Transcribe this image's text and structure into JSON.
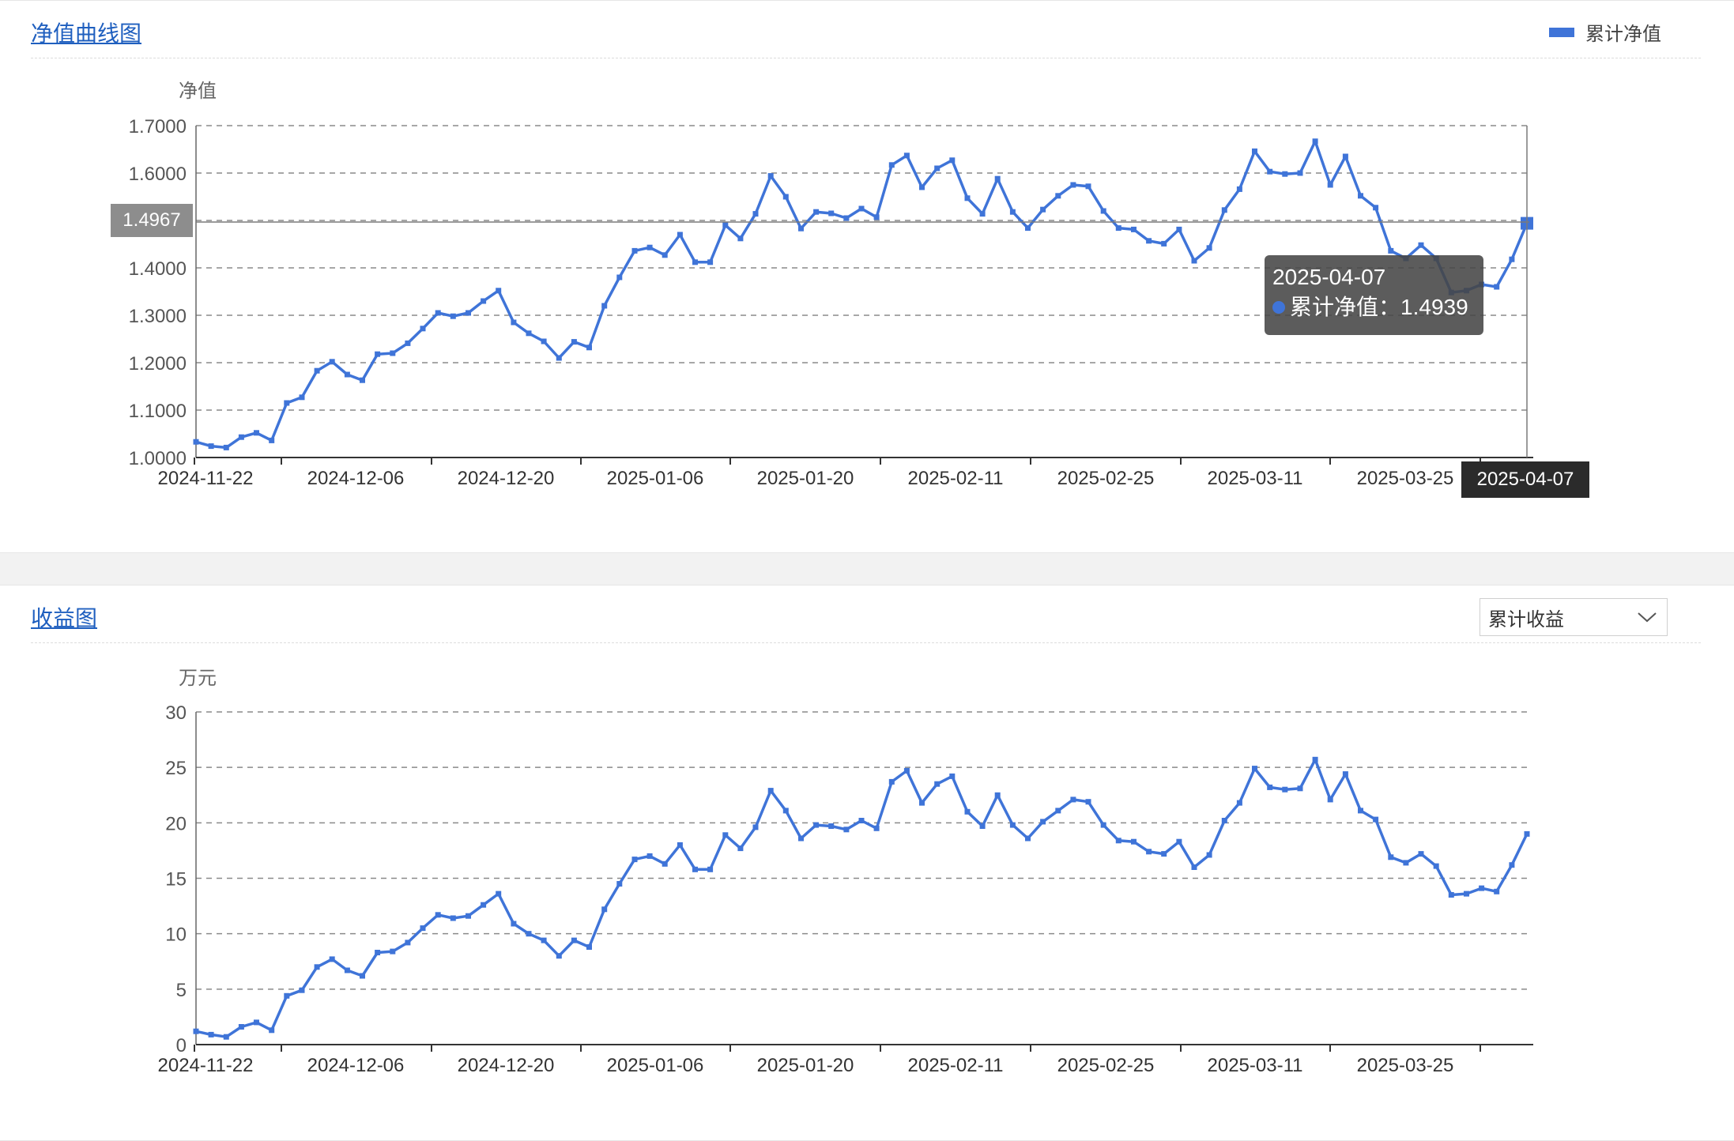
{
  "colors": {
    "series": "#3f74d8",
    "grid": "#8a8a8a",
    "axis": "#333333"
  },
  "nav_panel": {
    "title": "净值曲线图",
    "legend_label": "累计净值",
    "tooltip": {
      "date": "2025-04-07",
      "series": "累计净值",
      "value": "1.4939"
    },
    "crosshair_y_label": "1.4967",
    "crosshair_x_label": "2025-04-07"
  },
  "profit_panel": {
    "title": "收益图",
    "dropdown_value": "累计收益",
    "dropdown_icon": "chevron-down-icon"
  },
  "chart_data": [
    {
      "type": "line",
      "ylabel": "净值",
      "ylim": [
        1.0,
        1.7
      ],
      "yticks": [
        "1.0000",
        "1.1000",
        "1.2000",
        "1.3000",
        "1.4000",
        "1.5000",
        "1.6000",
        "1.7000"
      ],
      "x_tick_labels": [
        "2024-11-22",
        "2024-12-06",
        "2024-12-20",
        "2025-01-06",
        "2025-01-20",
        "2025-02-11",
        "2025-02-25",
        "2025-03-11",
        "2025-03-25"
      ],
      "grid": true,
      "series": [
        {
          "name": "累计净值",
          "values": [
            1.033,
            1.024,
            1.021,
            1.043,
            1.052,
            1.036,
            1.115,
            1.127,
            1.183,
            1.202,
            1.175,
            1.163,
            1.218,
            1.22,
            1.241,
            1.272,
            1.305,
            1.298,
            1.305,
            1.33,
            1.352,
            1.285,
            1.262,
            1.245,
            1.21,
            1.244,
            1.232,
            1.32,
            1.38,
            1.436,
            1.443,
            1.427,
            1.47,
            1.412,
            1.412,
            1.49,
            1.462,
            1.514,
            1.594,
            1.55,
            1.483,
            1.518,
            1.515,
            1.505,
            1.525,
            1.507,
            1.617,
            1.637,
            1.57,
            1.61,
            1.627,
            1.547,
            1.514,
            1.588,
            1.518,
            1.484,
            1.523,
            1.552,
            1.575,
            1.572,
            1.52,
            1.484,
            1.481,
            1.457,
            1.451,
            1.481,
            1.415,
            1.442,
            1.522,
            1.566,
            1.646,
            1.603,
            1.598,
            1.6,
            1.667,
            1.575,
            1.635,
            1.552,
            1.527,
            1.436,
            1.42,
            1.448,
            1.42,
            1.348,
            1.352,
            1.365,
            1.36,
            1.418,
            1.494
          ]
        }
      ]
    },
    {
      "type": "line",
      "ylabel": "万元",
      "ylim": [
        0,
        30
      ],
      "yticks": [
        "0",
        "5",
        "10",
        "15",
        "20",
        "25",
        "30"
      ],
      "x_tick_labels": [
        "2024-11-22",
        "2024-12-06",
        "2024-12-20",
        "2025-01-06",
        "2025-01-20",
        "2025-02-11",
        "2025-02-25",
        "2025-03-11",
        "2025-03-25"
      ],
      "grid": true,
      "series": [
        {
          "name": "累计收益",
          "values": [
            1.2,
            0.9,
            0.7,
            1.6,
            2.0,
            1.3,
            4.4,
            4.9,
            7.0,
            7.7,
            6.7,
            6.2,
            8.3,
            8.4,
            9.2,
            10.5,
            11.7,
            11.4,
            11.6,
            12.6,
            13.6,
            10.9,
            10.0,
            9.4,
            8.0,
            9.4,
            8.8,
            12.2,
            14.5,
            16.7,
            17.0,
            16.3,
            18.0,
            15.8,
            15.8,
            18.9,
            17.7,
            19.6,
            22.9,
            21.1,
            18.6,
            19.8,
            19.7,
            19.4,
            20.2,
            19.5,
            23.7,
            24.7,
            21.8,
            23.5,
            24.2,
            21.0,
            19.7,
            22.5,
            19.8,
            18.6,
            20.1,
            21.1,
            22.1,
            21.9,
            19.8,
            18.4,
            18.3,
            17.4,
            17.2,
            18.3,
            16.0,
            17.1,
            20.2,
            21.8,
            24.9,
            23.2,
            23.0,
            23.1,
            25.7,
            22.1,
            24.4,
            21.1,
            20.3,
            16.9,
            16.4,
            17.2,
            16.1,
            13.5,
            13.6,
            14.1,
            13.8,
            16.2,
            19.0
          ]
        }
      ]
    }
  ]
}
